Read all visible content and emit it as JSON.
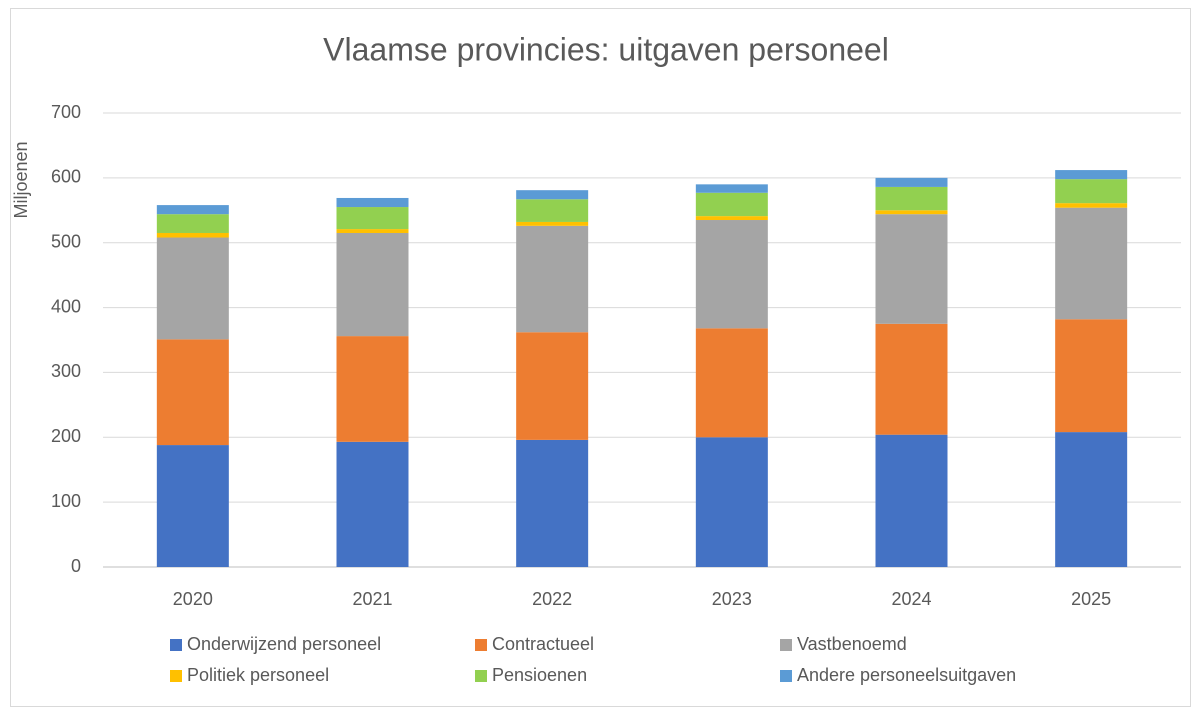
{
  "chart_data": {
    "type": "stacked_bar",
    "title": "Vlaamse provincies: uitgaven personeel",
    "y_label": "Miljoenen",
    "categories": [
      "2020",
      "2021",
      "2022",
      "2023",
      "2024",
      "2025"
    ],
    "series": [
      {
        "name": "Onderwijzend personeel",
        "color": "#4472c4",
        "values": [
          188,
          193,
          196,
          200,
          204,
          208
        ]
      },
      {
        "name": "Contractueel",
        "color": "#ed7d31",
        "values": [
          163,
          163,
          166,
          168,
          171,
          174
        ]
      },
      {
        "name": "Vastbenoemd",
        "color": "#a5a5a5",
        "values": [
          157,
          159,
          164,
          167,
          169,
          172
        ]
      },
      {
        "name": "Politiek personeel",
        "color": "#ffc000",
        "values": [
          7,
          6,
          6,
          6,
          6,
          7
        ]
      },
      {
        "name": "Pensioenen",
        "color": "#92d050",
        "values": [
          29,
          34,
          35,
          36,
          36,
          37
        ]
      },
      {
        "name": "Andere personeelsuitgaven",
        "color": "#5b9bd5",
        "values": [
          14,
          14,
          14,
          13,
          14,
          14
        ]
      }
    ],
    "ylim": [
      0,
      700
    ],
    "yticks": [
      0,
      100,
      200,
      300,
      400,
      500,
      600,
      700
    ],
    "grid": true
  }
}
